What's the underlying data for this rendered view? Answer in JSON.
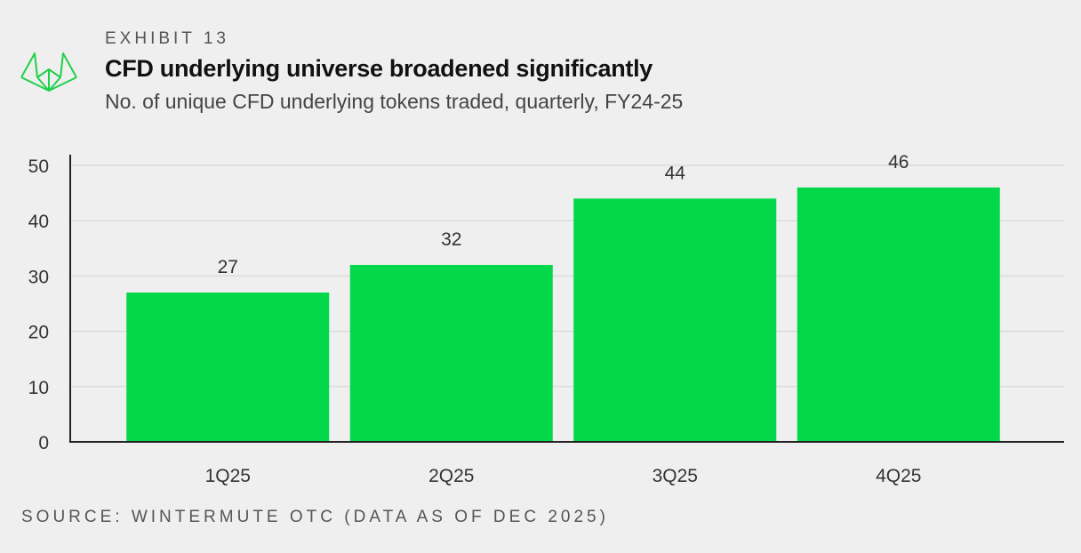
{
  "header": {
    "exhibit": "EXHIBIT 13",
    "title": "CFD underlying universe broadened significantly",
    "subtitle": "No. of unique CFD underlying tokens traded, quarterly, FY24-25",
    "logo_icon": "wintermute-logo-icon"
  },
  "footer": {
    "source": "SOURCE: WINTERMUTE OTC (DATA AS OF DEC 2025)"
  },
  "colors": {
    "bar": "#03d84b",
    "logo": "#1fd14a",
    "background": "#efefef",
    "grid": "#dcdcdc",
    "axis": "#222222"
  },
  "chart_data": {
    "type": "bar",
    "title": "CFD underlying universe broadened significantly",
    "subtitle": "No. of unique CFD underlying tokens traded, quarterly, FY24-25",
    "categories": [
      "1Q25",
      "2Q25",
      "3Q25",
      "4Q25"
    ],
    "values": [
      27,
      32,
      44,
      46
    ],
    "data_labels": [
      "27",
      "32",
      "44",
      "46"
    ],
    "yticks": [
      "0",
      "10",
      "20",
      "30",
      "40",
      "50"
    ],
    "ylim": [
      0,
      50
    ],
    "grid": true,
    "legend": "none",
    "xlabel": "",
    "ylabel": ""
  }
}
